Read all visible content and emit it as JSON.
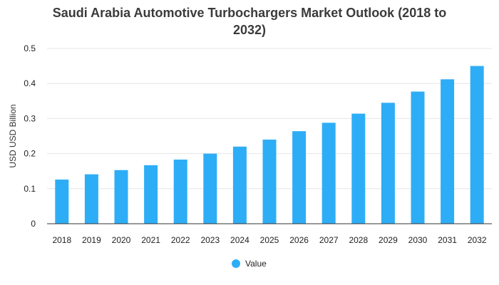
{
  "chart_data": {
    "type": "bar",
    "title_lines": [
      "Saudi Arabia Automotive Turbochargers Market Outlook (2018 to",
      "2032)"
    ],
    "ylabel": "USD USD Billion",
    "xlabel": "",
    "categories": [
      "2018",
      "2019",
      "2020",
      "2021",
      "2022",
      "2023",
      "2024",
      "2025",
      "2026",
      "2027",
      "2028",
      "2029",
      "2030",
      "2031",
      "2032"
    ],
    "series": [
      {
        "name": "Value",
        "values": [
          0.126,
          0.141,
          0.153,
          0.167,
          0.183,
          0.2,
          0.22,
          0.24,
          0.264,
          0.288,
          0.314,
          0.345,
          0.377,
          0.412,
          0.45
        ]
      }
    ],
    "ylim": [
      0,
      0.5
    ],
    "yticks": [
      "0",
      "0.1",
      "0.2",
      "0.3",
      "0.4",
      "0.5"
    ],
    "grid": true,
    "legend_position": "bottom",
    "colors": {
      "bar": "#2eadf7",
      "grid": "#e6e6e6",
      "axis": "#333333"
    }
  }
}
